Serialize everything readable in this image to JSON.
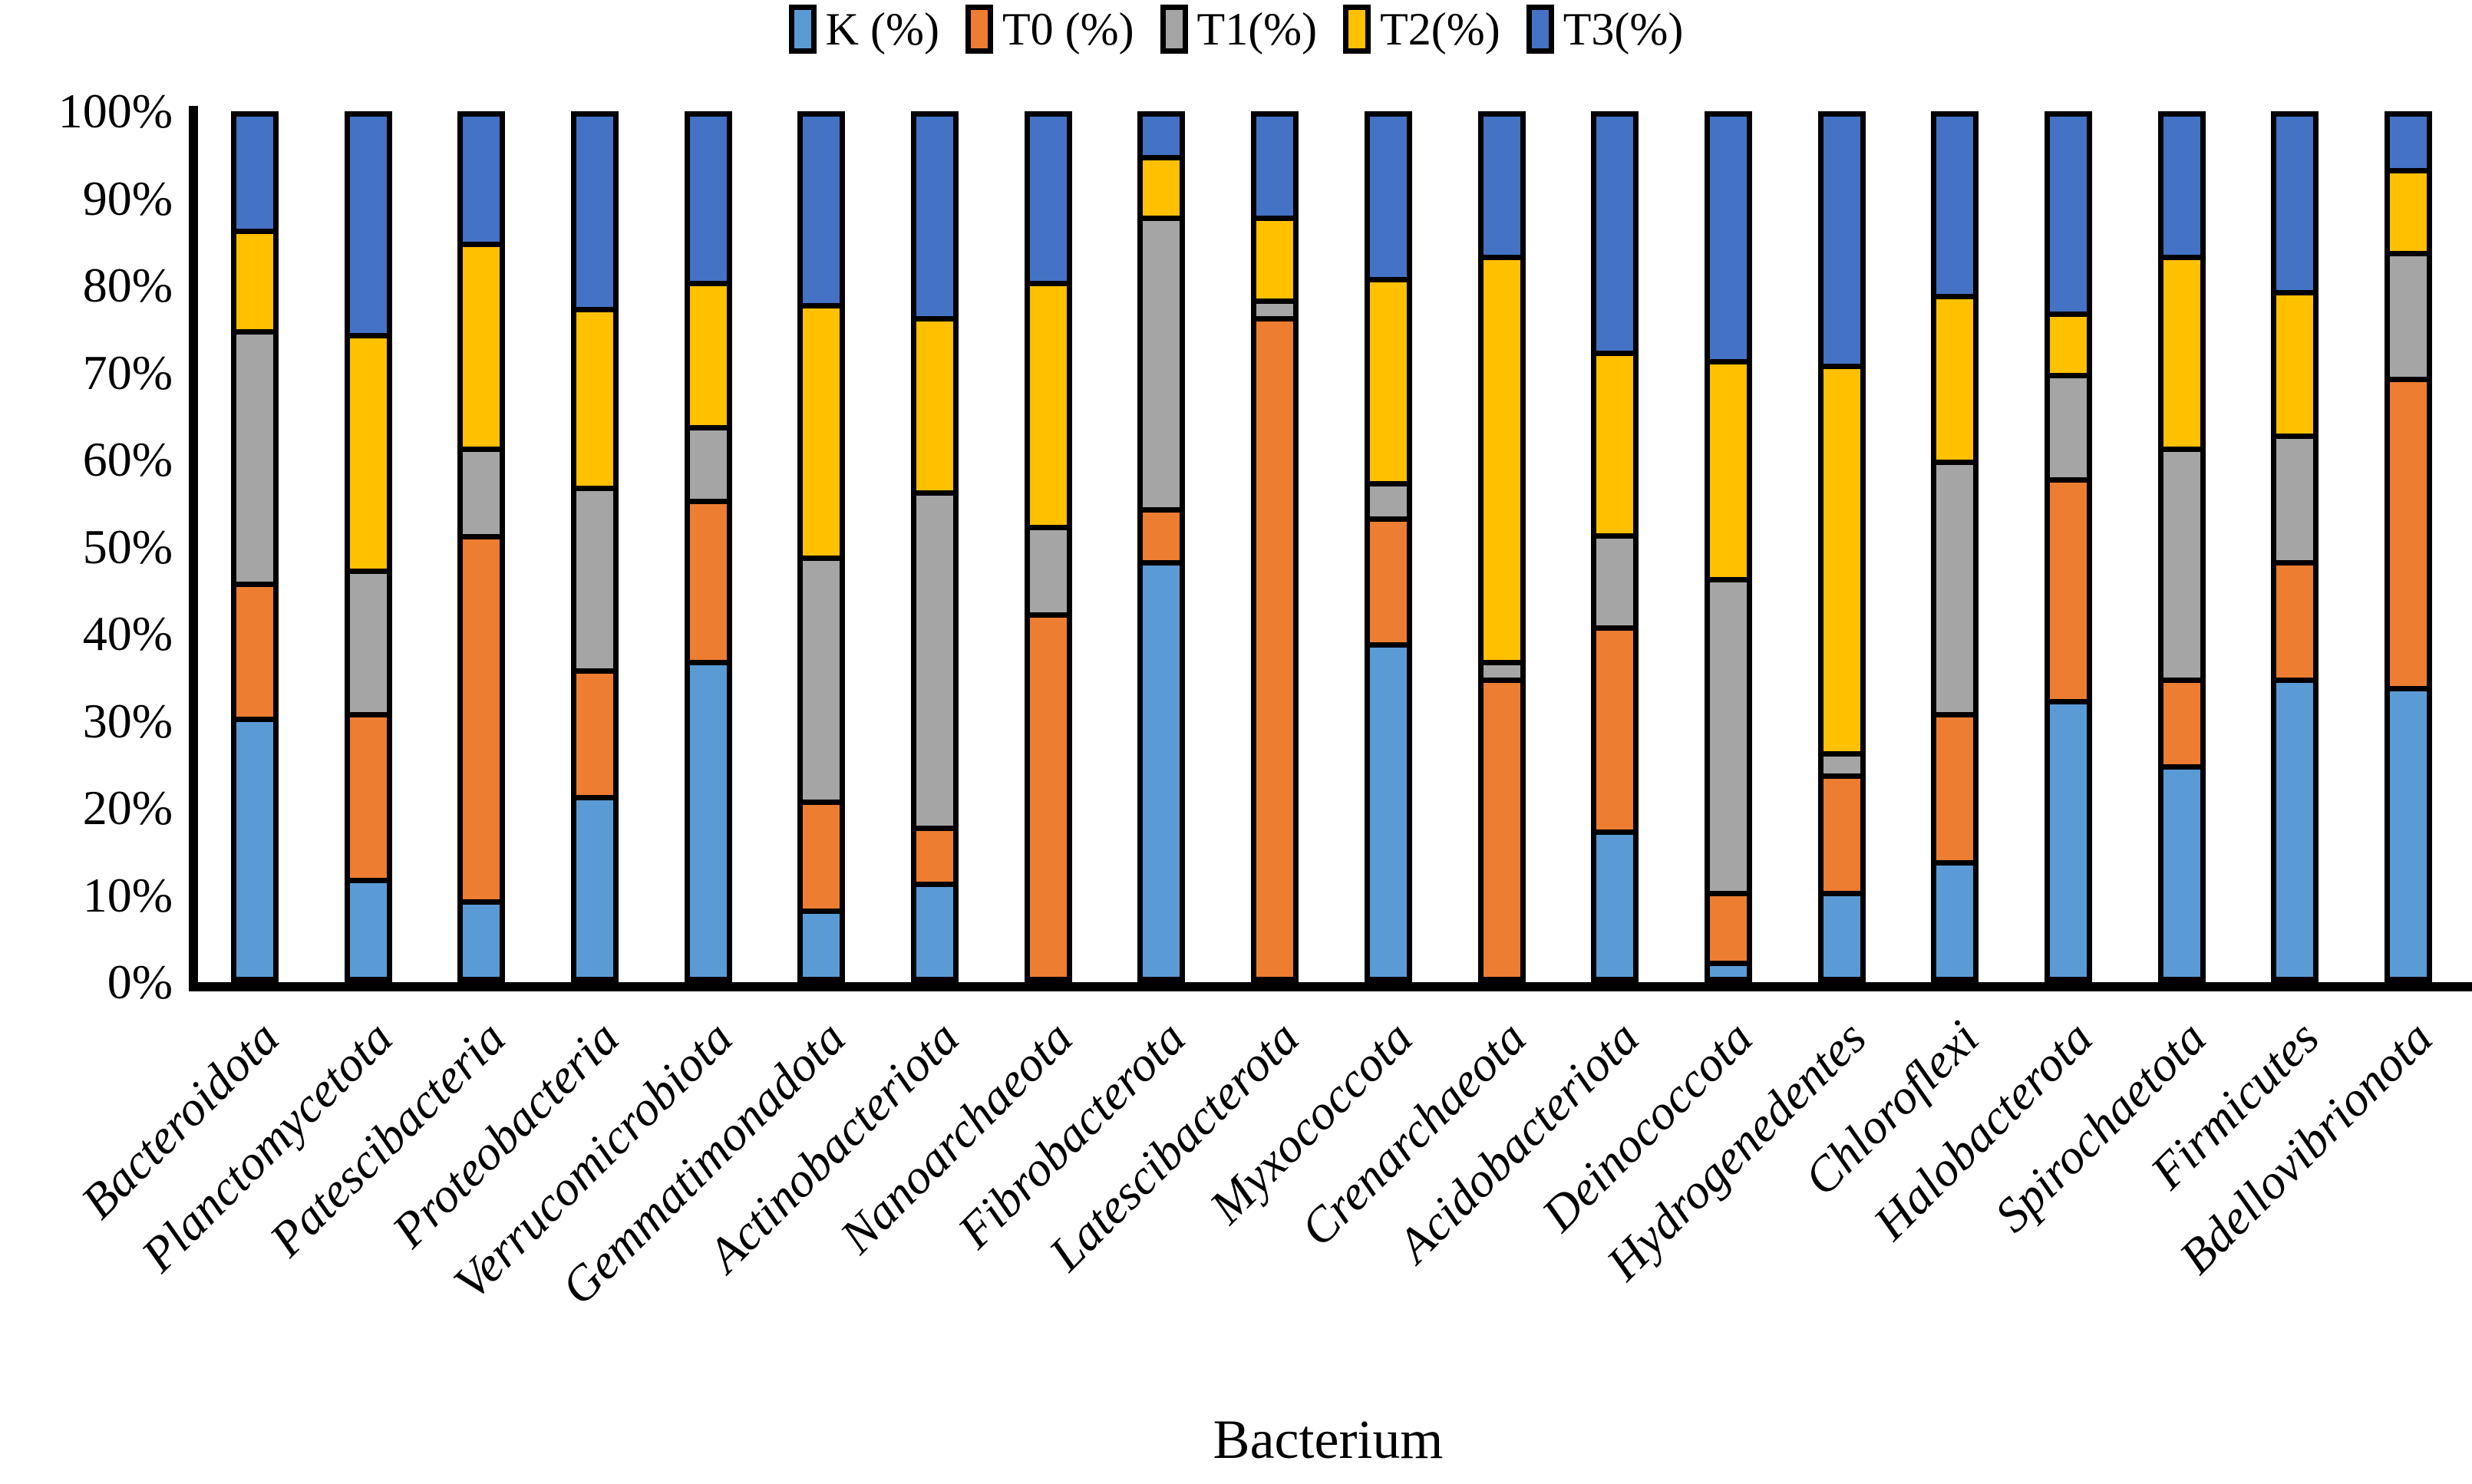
{
  "figure": {
    "xlabel": "Bacterium"
  },
  "chart_data": {
    "type": "bar",
    "variant": "stacked-100-percent",
    "title": "",
    "xlabel": "Bacterium",
    "ylabel": "",
    "ylim": [
      0,
      100
    ],
    "grid": false,
    "legend_position": "top-center",
    "axis_color": "#000000",
    "y_ticks": [
      "100%",
      "90%",
      "80%",
      "70%",
      "60%",
      "50%",
      "40%",
      "30%",
      "20%",
      "10%",
      "0%"
    ],
    "categories": [
      "Bacteroidota",
      "Planctomycetota",
      "Patescibacteria",
      "Proteobacteria",
      "Verrucomicrobiota",
      "Gemmatimonadota",
      "Actinobacteriota",
      "Nanoarchaeota",
      "Fibrobacterota",
      "Latescibacterota",
      "Myxococcota",
      "Crenarchaeota",
      "Acidobacteriota",
      "Deinococcota",
      "Hydrogenedentes",
      "Chloroflexi",
      "Halobacterota",
      "Spirochaetota",
      "Firmicutes",
      "Bdellovibrionota"
    ],
    "series": [
      {
        "name": "K (%)",
        "color": "#5B9BD5",
        "values": [
          30.5,
          12,
          9.5,
          21.5,
          37,
          8.5,
          11.5,
          0,
          48.5,
          0,
          39,
          0,
          17.5,
          2.5,
          10.5,
          14,
          32.5,
          25,
          35,
          34
        ]
      },
      {
        "name": "T0 (%)",
        "color": "#ED7D31",
        "values": [
          15.5,
          19,
          42,
          14.5,
          18.5,
          12.5,
          6.5,
          42.5,
          6,
          76.5,
          14.5,
          35,
          23.5,
          8,
          13.5,
          17,
          25.5,
          10,
          13.5,
          35.5
        ]
      },
      {
        "name": "T1(%)",
        "color": "#A5A5A5",
        "values": [
          29,
          16.5,
          10,
          21,
          8.5,
          28,
          38.5,
          10,
          33.5,
          2,
          4,
          2,
          10.5,
          36,
          2.5,
          29,
          12,
          26.5,
          14.5,
          14.5
        ]
      },
      {
        "name": "T2(%)",
        "color": "#FFC000",
        "values": [
          11.5,
          27,
          23.5,
          20.5,
          16.5,
          29,
          20,
          28,
          7,
          9.5,
          23.5,
          46.5,
          21,
          25,
          44.5,
          19,
          7,
          22,
          16.5,
          9.5
        ]
      },
      {
        "name": "T3(%)",
        "color": "#4472C4",
        "values": [
          13.5,
          25.5,
          15,
          22.5,
          19.5,
          22,
          23.5,
          19.5,
          5,
          12,
          19,
          16.5,
          27.5,
          28.5,
          29,
          21,
          23,
          16.5,
          20.5,
          6.5
        ]
      }
    ]
  }
}
